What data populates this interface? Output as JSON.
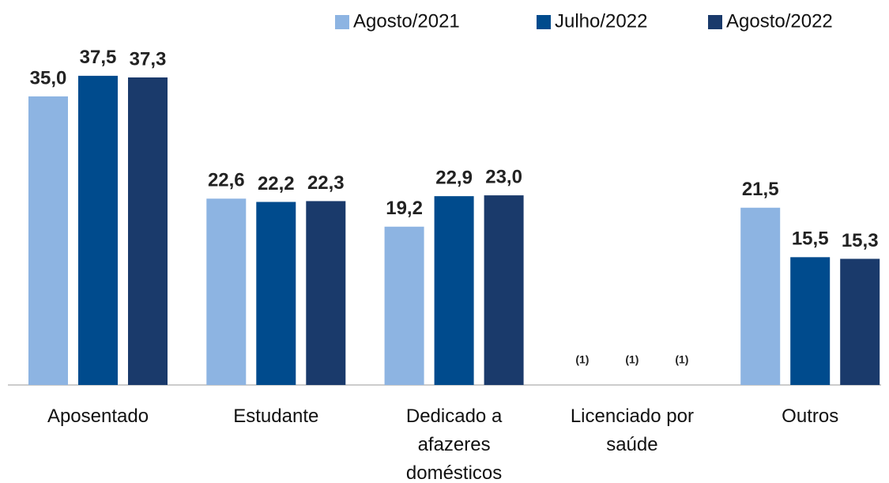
{
  "chart_data": {
    "type": "bar",
    "categories": [
      "Aposentado",
      "Estudante",
      "Dedicado a afazeres domésticos",
      "Licenciado por saúde",
      "Outros"
    ],
    "series": [
      {
        "name": "Agosto/2021",
        "color": "#8db4e2",
        "values": [
          35.0,
          22.6,
          19.2,
          null,
          21.5
        ],
        "value_labels": [
          "35,0",
          "22,6",
          "19,2",
          "(1)",
          "21,5"
        ]
      },
      {
        "name": "Julho/2022",
        "color": "#004b8d",
        "values": [
          37.5,
          22.2,
          22.9,
          null,
          15.5
        ],
        "value_labels": [
          "37,5",
          "22,2",
          "22,9",
          "(1)",
          "15,5"
        ]
      },
      {
        "name": "Agosto/2022",
        "color": "#1a3a6b",
        "values": [
          37.3,
          22.3,
          23.0,
          null,
          15.3
        ],
        "value_labels": [
          "37,3",
          "22,3",
          "23,0",
          "(1)",
          "15,3"
        ]
      }
    ],
    "legend": "top-right"
  }
}
